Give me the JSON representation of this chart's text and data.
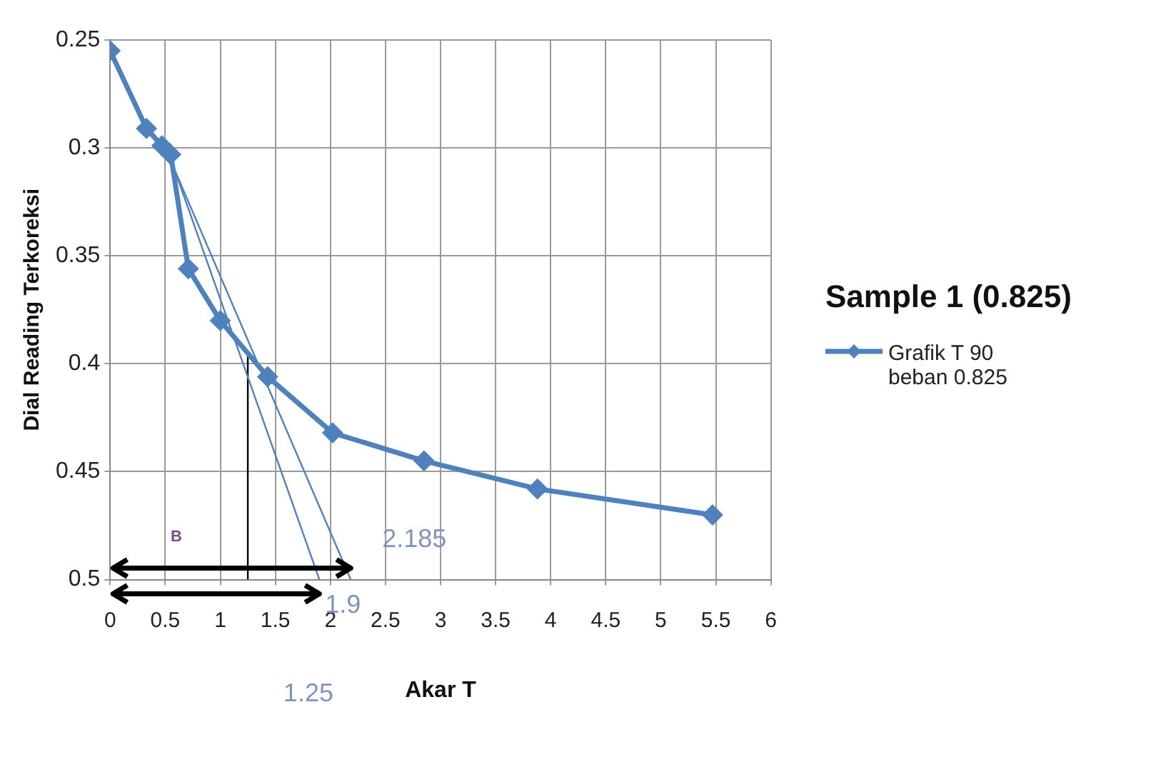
{
  "chart_data": {
    "type": "line",
    "title": "Sample 1 (0.825)",
    "xlabel": "Akar T",
    "ylabel": "Dial Reading Terkoreksi",
    "series": [
      {
        "name": "Grafik T 90 beban 0.825",
        "color": "#4f81bd",
        "marker": "diamond",
        "x": [
          0,
          0.33,
          0.47,
          0.55,
          0.71,
          1.0,
          1.43,
          2.02,
          2.85,
          3.88,
          5.47
        ],
        "values": [
          0.255,
          0.291,
          0.299,
          0.303,
          0.356,
          0.38,
          0.406,
          0.432,
          0.445,
          0.458,
          0.47
        ]
      },
      {
        "type": "line",
        "color": "#4f81bd",
        "marker": "none",
        "x": [
          0.5,
          2.185
        ],
        "values": [
          0.3,
          0.5
        ]
      },
      {
        "type": "line",
        "color": "#4f81bd",
        "marker": "none",
        "x": [
          0.55,
          1.9
        ],
        "values": [
          0.305,
          0.5
        ]
      },
      {
        "type": "line",
        "color": "#000000",
        "marker": "none",
        "x": [
          1.25,
          1.25
        ],
        "values": [
          0.395,
          0.5
        ]
      }
    ],
    "xlim": [
      0,
      6
    ],
    "xticks": [
      0,
      0.5,
      1,
      1.5,
      2,
      2.5,
      3,
      3.5,
      4,
      4.5,
      5,
      5.5,
      6
    ],
    "ylim": [
      0.5,
      0.25
    ],
    "yticks": [
      0.25,
      0.3,
      0.35,
      0.4,
      0.45,
      0.5
    ],
    "grid": true,
    "legend": "right",
    "annotations": [
      {
        "text": "2.185",
        "x": 2.185,
        "y": 0.5
      },
      {
        "text": "1.9",
        "x": 1.9,
        "y": 0.5
      },
      "1.25",
      "B"
    ]
  }
}
